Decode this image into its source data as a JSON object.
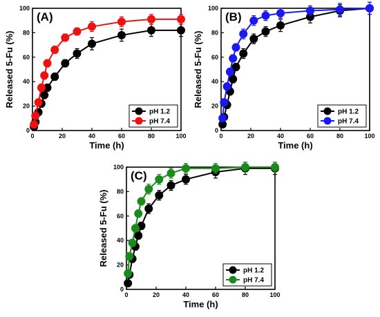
{
  "chart_data": [
    {
      "type": "line",
      "panel_label": "(A)",
      "xlabel": "Time (h)",
      "ylabel": "Released 5-Fu (%)",
      "xlim": [
        0,
        100
      ],
      "ylim": [
        0,
        100
      ],
      "xticks": [
        "0",
        "20",
        "40",
        "60",
        "80",
        "100"
      ],
      "yticks": [
        "0",
        "20",
        "40",
        "60",
        "80",
        "100"
      ],
      "legend_position": "bottom-right",
      "series": [
        {
          "name": "pH 1.2",
          "color": "#000000",
          "x": [
            1,
            2,
            4,
            6,
            8,
            10,
            15,
            22,
            30,
            40,
            60,
            80,
            100
          ],
          "y": [
            3,
            7,
            15,
            22,
            29,
            35,
            44,
            55,
            63,
            71,
            78,
            82,
            82
          ],
          "err": [
            2,
            2,
            2,
            3,
            3,
            3,
            3,
            3,
            4,
            5,
            5,
            5,
            5
          ]
        },
        {
          "name": "pH 7.4",
          "color": "#ee1111",
          "x": [
            1,
            2,
            4,
            6,
            8,
            10,
            15,
            22,
            30,
            40,
            60,
            80,
            100
          ],
          "y": [
            5,
            12,
            23,
            35,
            45,
            55,
            66,
            76,
            81,
            85,
            89,
            91,
            91
          ],
          "err": [
            2,
            2,
            3,
            3,
            3,
            3,
            3,
            3,
            3,
            4,
            4,
            4,
            4
          ]
        }
      ]
    },
    {
      "type": "line",
      "panel_label": "(B)",
      "xlabel": "Time (h)",
      "ylabel": "Released 5-Fu (%)",
      "xlim": [
        0,
        100
      ],
      "ylim": [
        0,
        100
      ],
      "xticks": [
        "0",
        "20",
        "40",
        "60",
        "80",
        "100"
      ],
      "yticks": [
        "0",
        "20",
        "40",
        "60",
        "80",
        "100"
      ],
      "legend_position": "bottom-right",
      "series": [
        {
          "name": "pH 1.2",
          "color": "#000000",
          "x": [
            1,
            2,
            4,
            6,
            8,
            10,
            15,
            22,
            30,
            40,
            60,
            80,
            100
          ],
          "y": [
            5,
            11,
            21,
            32,
            42,
            52,
            63,
            75,
            81,
            86,
            93,
            98,
            100
          ],
          "err": [
            2,
            2,
            3,
            3,
            3,
            3,
            4,
            4,
            4,
            5,
            5,
            5,
            5
          ]
        },
        {
          "name": "pH 7.4",
          "color": "#1a1aee",
          "x": [
            1,
            2,
            4,
            6,
            8,
            10,
            15,
            22,
            30,
            40,
            60,
            80,
            100
          ],
          "y": [
            10,
            23,
            36,
            48,
            59,
            68,
            79,
            90,
            94,
            96,
            98,
            99,
            100
          ],
          "err": [
            2,
            3,
            3,
            3,
            3,
            3,
            4,
            4,
            4,
            4,
            4,
            5,
            5
          ]
        }
      ]
    },
    {
      "type": "line",
      "panel_label": "(C)",
      "xlabel": "Time (h)",
      "ylabel": "Released 5-Fu (%)",
      "xlim": [
        0,
        100
      ],
      "ylim": [
        0,
        100
      ],
      "xticks": [
        "0",
        "20",
        "40",
        "60",
        "80",
        "100"
      ],
      "yticks": [
        "0",
        "20",
        "40",
        "60",
        "80",
        "100"
      ],
      "legend_position": "bottom-right",
      "series": [
        {
          "name": "pH 1.2",
          "color": "#000000",
          "x": [
            1,
            2,
            4,
            6,
            8,
            10,
            15,
            22,
            30,
            40,
            60,
            80,
            100
          ],
          "y": [
            5,
            12,
            25,
            35,
            44,
            52,
            66,
            77,
            85,
            90,
            96,
            99,
            99
          ],
          "err": [
            2,
            2,
            3,
            3,
            3,
            3,
            4,
            4,
            4,
            4,
            5,
            5,
            5
          ]
        },
        {
          "name": "pH 7.4",
          "color": "#1a8a1a",
          "x": [
            1,
            2,
            4,
            6,
            8,
            10,
            15,
            22,
            30,
            40,
            60,
            80,
            100
          ],
          "y": [
            13,
            27,
            38,
            50,
            62,
            72,
            82,
            90,
            95,
            99,
            99,
            100,
            100
          ],
          "err": [
            3,
            3,
            3,
            3,
            3,
            3,
            4,
            4,
            4,
            4,
            4,
            4,
            4
          ]
        }
      ]
    }
  ]
}
